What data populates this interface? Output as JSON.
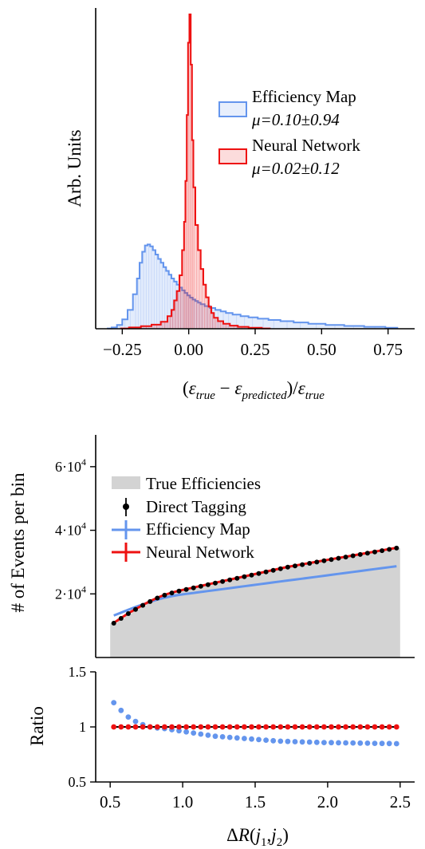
{
  "chart_data": [
    {
      "type": "histogram",
      "xlabel": "(ε_true − ε_predicted)/ε_true",
      "ylabel": "Arb. Units",
      "xlim": [
        -0.35,
        0.85
      ],
      "ylim": [
        0,
        1.0
      ],
      "xticks": [
        "−0.25",
        "0.00",
        "0.25",
        "0.50",
        "0.75"
      ],
      "xtick_values": [
        -0.25,
        0.0,
        0.25,
        0.5,
        0.75
      ],
      "legend_position": "right",
      "series": [
        {
          "name": "Efficiency Map",
          "stat": "μ=0.10±0.94",
          "color": "#6495ed",
          "histtype": "step-filled-light",
          "bins": [
            [
              -0.3,
              0.001
            ],
            [
              -0.28,
              0.004
            ],
            [
              -0.26,
              0.012
            ],
            [
              -0.24,
              0.03
            ],
            [
              -0.22,
              0.06
            ],
            [
              -0.2,
              0.11
            ],
            [
              -0.19,
              0.16
            ],
            [
              -0.18,
              0.21
            ],
            [
              -0.17,
              0.245
            ],
            [
              -0.16,
              0.265
            ],
            [
              -0.15,
              0.268
            ],
            [
              -0.14,
              0.262
            ],
            [
              -0.13,
              0.25
            ],
            [
              -0.12,
              0.236
            ],
            [
              -0.11,
              0.222
            ],
            [
              -0.1,
              0.21
            ],
            [
              -0.09,
              0.196
            ],
            [
              -0.08,
              0.184
            ],
            [
              -0.07,
              0.172
            ],
            [
              -0.06,
              0.16
            ],
            [
              -0.05,
              0.15
            ],
            [
              -0.04,
              0.14
            ],
            [
              -0.03,
              0.131
            ],
            [
              -0.02,
              0.122
            ],
            [
              -0.01,
              0.114
            ],
            [
              0.0,
              0.106
            ],
            [
              0.01,
              0.099
            ],
            [
              0.02,
              0.093
            ],
            [
              0.03,
              0.088
            ],
            [
              0.04,
              0.083
            ],
            [
              0.05,
              0.078
            ],
            [
              0.07,
              0.072
            ],
            [
              0.09,
              0.066
            ],
            [
              0.11,
              0.06
            ],
            [
              0.13,
              0.055
            ],
            [
              0.15,
              0.05
            ],
            [
              0.18,
              0.045
            ],
            [
              0.21,
              0.04
            ],
            [
              0.24,
              0.036
            ],
            [
              0.28,
              0.032
            ],
            [
              0.32,
              0.028
            ],
            [
              0.37,
              0.024
            ],
            [
              0.42,
              0.02
            ],
            [
              0.48,
              0.016
            ],
            [
              0.55,
              0.012
            ],
            [
              0.62,
              0.009
            ],
            [
              0.7,
              0.006
            ],
            [
              0.78,
              0.003
            ]
          ]
        },
        {
          "name": "Neural Network",
          "stat": "μ=0.02±0.12",
          "color": "#ee1111",
          "histtype": "step-filled-light",
          "bins": [
            [
              -0.25,
              0.001
            ],
            [
              -0.2,
              0.004
            ],
            [
              -0.16,
              0.008
            ],
            [
              -0.12,
              0.013
            ],
            [
              -0.09,
              0.022
            ],
            [
              -0.07,
              0.04
            ],
            [
              -0.06,
              0.06
            ],
            [
              -0.05,
              0.09
            ],
            [
              -0.04,
              0.12
            ],
            [
              -0.03,
              0.17
            ],
            [
              -0.02,
              0.25
            ],
            [
              -0.015,
              0.34
            ],
            [
              -0.01,
              0.47
            ],
            [
              -0.005,
              0.68
            ],
            [
              0.0,
              0.91
            ],
            [
              0.005,
              1.0
            ],
            [
              0.01,
              0.84
            ],
            [
              0.015,
              0.6
            ],
            [
              0.02,
              0.45
            ],
            [
              0.03,
              0.33
            ],
            [
              0.04,
              0.25
            ],
            [
              0.05,
              0.19
            ],
            [
              0.06,
              0.14
            ],
            [
              0.07,
              0.1
            ],
            [
              0.08,
              0.07
            ],
            [
              0.09,
              0.05
            ],
            [
              0.1,
              0.035
            ],
            [
              0.12,
              0.024
            ],
            [
              0.14,
              0.016
            ],
            [
              0.17,
              0.01
            ],
            [
              0.2,
              0.006
            ],
            [
              0.25,
              0.003
            ],
            [
              0.3,
              0.001
            ]
          ]
        }
      ]
    },
    {
      "type": "line",
      "ylabel": "# of Events per bin",
      "xlim": [
        0.4,
        2.6
      ],
      "ylim": [
        0,
        70000
      ],
      "yticks": [
        20000,
        40000,
        60000
      ],
      "ytick_labels": [
        {
          "mant": "2·10",
          "exp": "4"
        },
        {
          "mant": "4·10",
          "exp": "4"
        },
        {
          "mant": "6·10",
          "exp": "4"
        }
      ],
      "legend_position": "top-left",
      "x": [
        0.525,
        0.575,
        0.625,
        0.675,
        0.725,
        0.775,
        0.825,
        0.875,
        0.925,
        0.975,
        1.025,
        1.075,
        1.125,
        1.175,
        1.225,
        1.275,
        1.325,
        1.375,
        1.425,
        1.475,
        1.525,
        1.575,
        1.625,
        1.675,
        1.725,
        1.775,
        1.825,
        1.875,
        1.925,
        1.975,
        2.025,
        2.075,
        2.125,
        2.175,
        2.225,
        2.275,
        2.325,
        2.375,
        2.425,
        2.475
      ],
      "series": [
        {
          "name": "True Efficiencies",
          "color": "#d3d3d3",
          "style": "filled-area",
          "values": [
            10800,
            12300,
            13800,
            15100,
            16400,
            17600,
            18700,
            19600,
            20300,
            20900,
            21400,
            21900,
            22400,
            22900,
            23400,
            23900,
            24400,
            24900,
            25400,
            25900,
            26400,
            26900,
            27400,
            27900,
            28400,
            28800,
            29200,
            29600,
            30000,
            30400,
            30800,
            31200,
            31600,
            32000,
            32400,
            32800,
            33200,
            33600,
            34000,
            34400
          ]
        },
        {
          "name": "Direct Tagging",
          "color": "#000000",
          "style": "markers-errorbars",
          "values": [
            10800,
            12300,
            13800,
            15100,
            16400,
            17600,
            18700,
            19600,
            20300,
            20900,
            21400,
            21900,
            22400,
            22900,
            23400,
            23900,
            24400,
            24900,
            25400,
            25900,
            26400,
            26900,
            27400,
            27900,
            28400,
            28800,
            29200,
            29600,
            30000,
            30400,
            30800,
            31200,
            31600,
            32000,
            32400,
            32800,
            33200,
            33600,
            34000,
            34400
          ]
        },
        {
          "name": "Efficiency Map",
          "color": "#6495ed",
          "style": "line",
          "values": [
            13200,
            14100,
            15000,
            15900,
            16700,
            17500,
            18200,
            18800,
            19300,
            19700,
            20000,
            20300,
            20600,
            20900,
            21200,
            21500,
            21800,
            22100,
            22400,
            22700,
            23000,
            23300,
            23600,
            23900,
            24200,
            24500,
            24800,
            25100,
            25400,
            25700,
            26000,
            26300,
            26600,
            26900,
            27200,
            27500,
            27800,
            28100,
            28400,
            28700
          ]
        },
        {
          "name": "Neural Network",
          "color": "#ee1111",
          "style": "line",
          "values": [
            10900,
            12400,
            13900,
            15200,
            16500,
            17700,
            18800,
            19700,
            20400,
            21000,
            21500,
            22000,
            22500,
            23000,
            23500,
            24000,
            24500,
            25000,
            25500,
            26000,
            26500,
            27000,
            27500,
            28000,
            28500,
            28900,
            29300,
            29700,
            30100,
            30500,
            30900,
            31300,
            31700,
            32100,
            32500,
            32900,
            33300,
            33700,
            34100,
            34500
          ]
        }
      ]
    },
    {
      "type": "scatter",
      "xlabel": "ΔR(j1,j2)",
      "ylabel": "Ratio",
      "xlim": [
        0.4,
        2.6
      ],
      "ylim": [
        0.5,
        1.5
      ],
      "yticks": [
        "0.5",
        "1",
        "1.5"
      ],
      "ytick_values": [
        0.5,
        1.0,
        1.5
      ],
      "xticks": [
        "0.5",
        "1.0",
        "1.5",
        "2.0",
        "2.5"
      ],
      "xtick_values": [
        0.5,
        1.0,
        1.5,
        2.0,
        2.5
      ],
      "x": [
        0.525,
        0.575,
        0.625,
        0.675,
        0.725,
        0.775,
        0.825,
        0.875,
        0.925,
        0.975,
        1.025,
        1.075,
        1.125,
        1.175,
        1.225,
        1.275,
        1.325,
        1.375,
        1.425,
        1.475,
        1.525,
        1.575,
        1.625,
        1.675,
        1.725,
        1.775,
        1.825,
        1.875,
        1.925,
        1.975,
        2.025,
        2.075,
        2.125,
        2.175,
        2.225,
        2.275,
        2.325,
        2.375,
        2.425,
        2.475
      ],
      "series": [
        {
          "name": "Direct Tagging",
          "color": "#000000",
          "values": [
            1,
            1,
            1,
            1,
            1,
            1,
            1,
            1,
            1,
            1,
            1,
            1,
            1,
            1,
            1,
            1,
            1,
            1,
            1,
            1,
            1,
            1,
            1,
            1,
            1,
            1,
            1,
            1,
            1,
            1,
            1,
            1,
            1,
            1,
            1,
            1,
            1,
            1,
            1,
            1
          ]
        },
        {
          "name": "Efficiency Map",
          "color": "#6495ed",
          "values": [
            1.22,
            1.15,
            1.09,
            1.05,
            1.02,
            1.0,
            0.99,
            0.985,
            0.975,
            0.965,
            0.955,
            0.945,
            0.935,
            0.925,
            0.915,
            0.91,
            0.905,
            0.9,
            0.895,
            0.89,
            0.885,
            0.88,
            0.875,
            0.87,
            0.868,
            0.866,
            0.864,
            0.862,
            0.86,
            0.858,
            0.857,
            0.856,
            0.855,
            0.854,
            0.853,
            0.852,
            0.851,
            0.85,
            0.849,
            0.848
          ]
        },
        {
          "name": "Neural Network",
          "color": "#ee1111",
          "values": [
            1,
            1,
            1,
            1,
            1,
            1,
            1,
            1,
            1,
            1,
            1,
            1,
            1,
            1,
            1,
            1,
            1,
            1,
            1,
            1,
            1,
            1,
            1,
            1,
            1,
            1,
            1,
            1,
            1,
            1,
            1,
            1,
            1,
            1,
            1,
            1,
            1,
            1,
            1,
            1
          ]
        }
      ]
    }
  ]
}
